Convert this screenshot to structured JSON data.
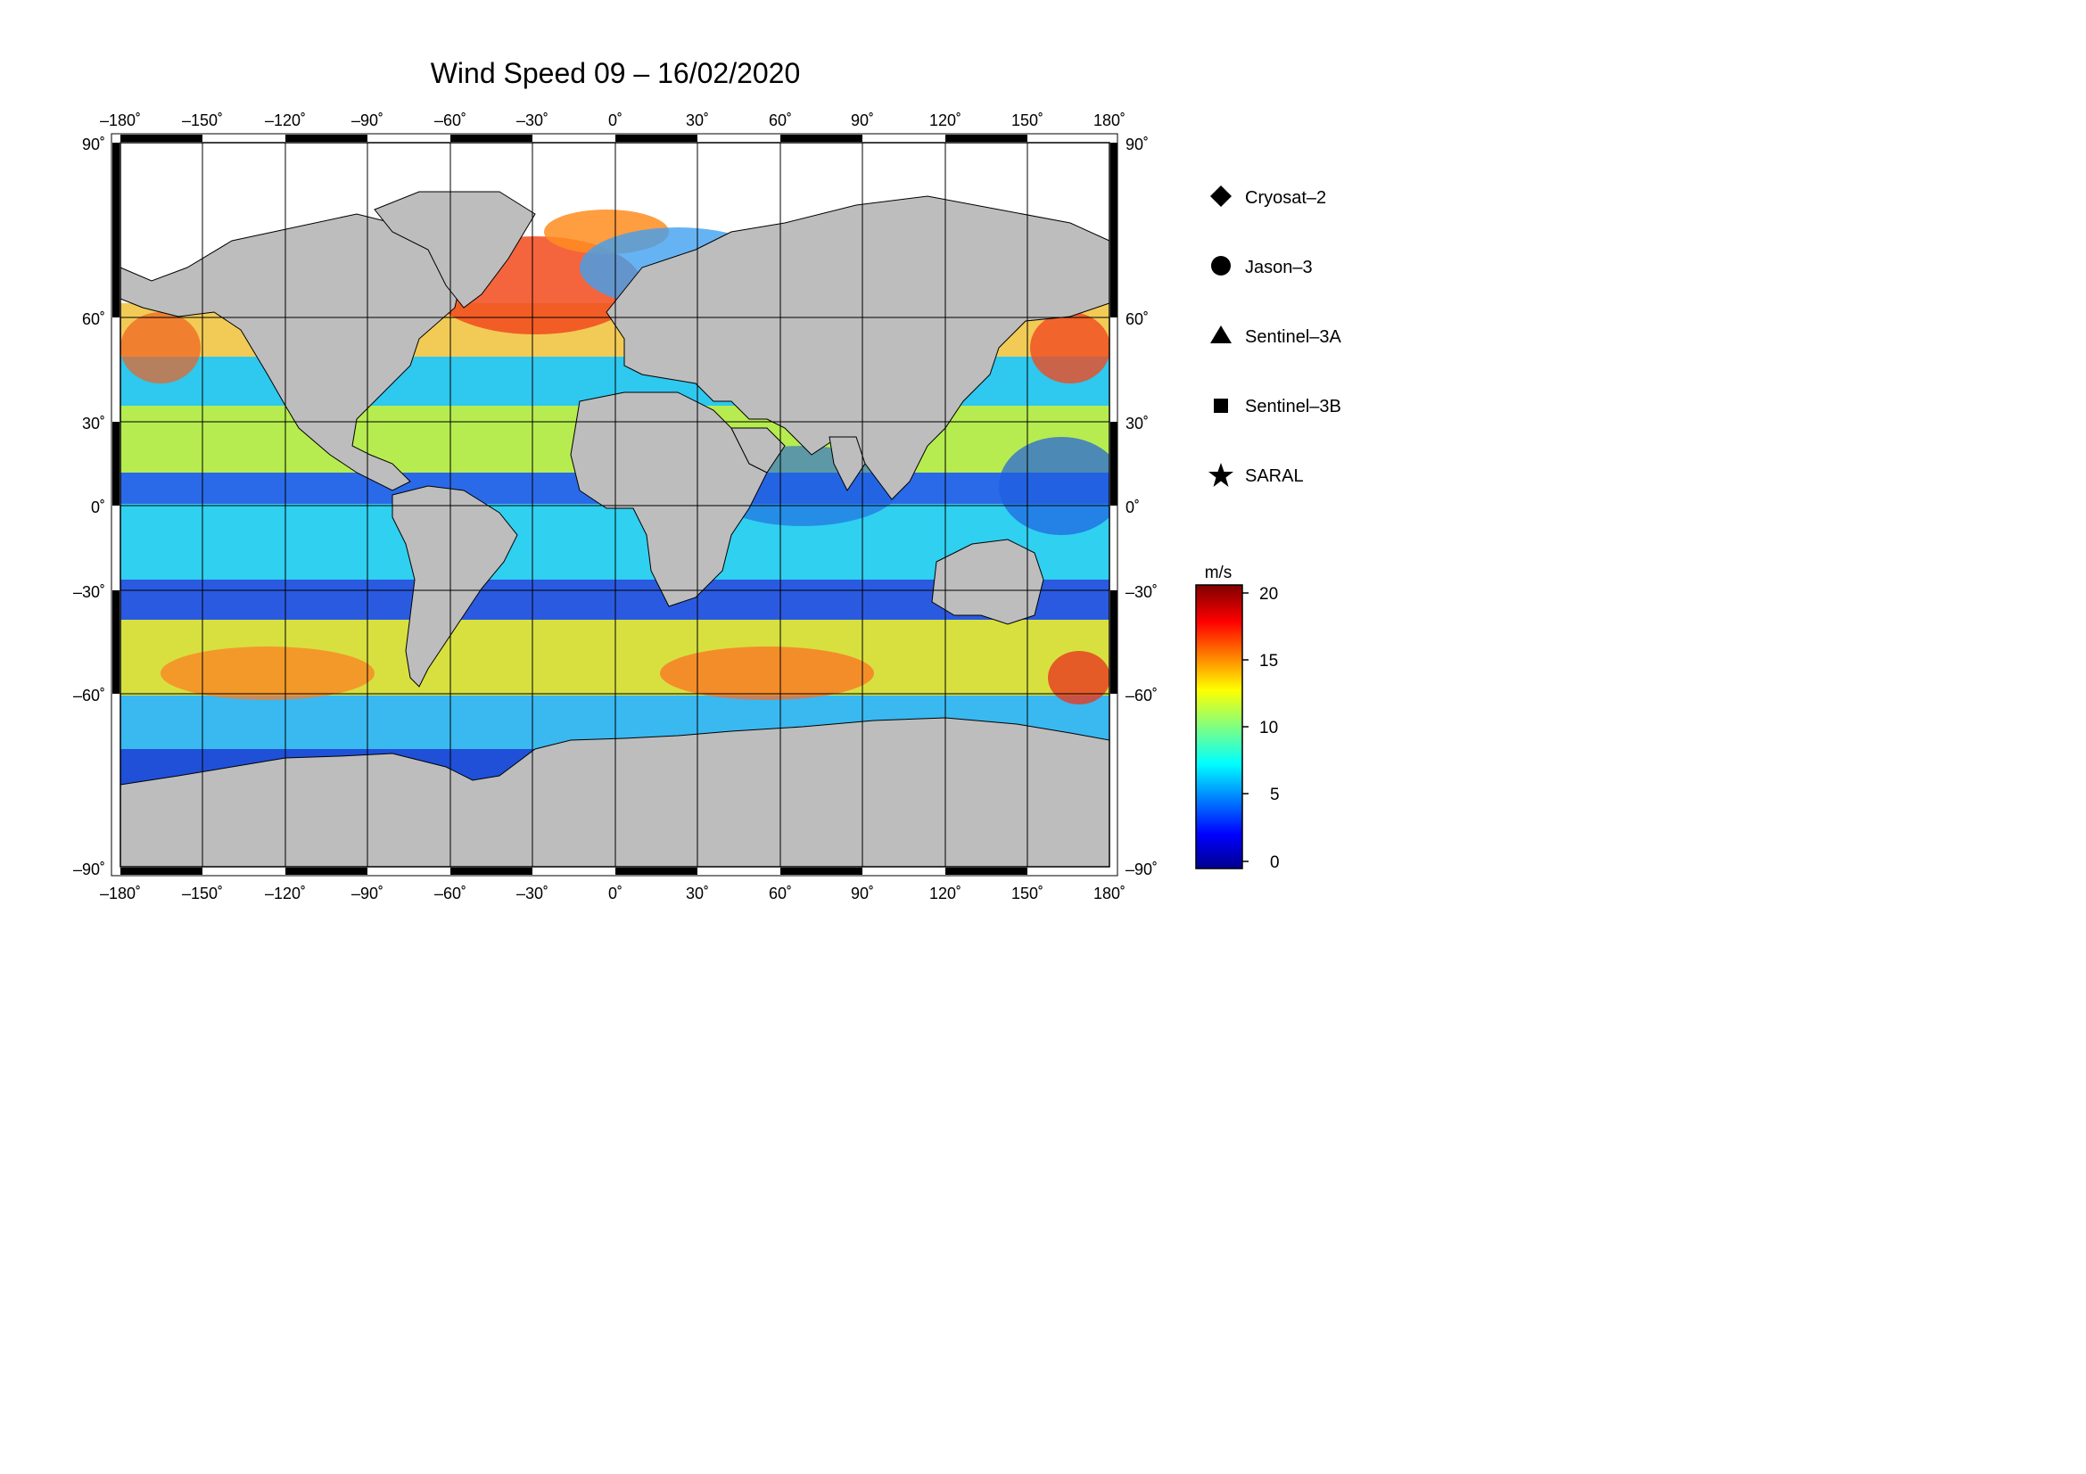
{
  "title": "Wind Speed 09 – 16/02/2020",
  "lon_ticks": [
    "–180˚",
    "–150˚",
    "–120˚",
    "–90˚",
    "–60˚",
    "–30˚",
    "0˚",
    "30˚",
    "60˚",
    "90˚",
    "120˚",
    "150˚",
    "180˚"
  ],
  "lat_ticks_left": [
    "90˚",
    "60˚",
    "30˚",
    "0˚",
    "–30˚",
    "–60˚",
    "–90˚"
  ],
  "lat_ticks_right": [
    "90˚",
    "60˚",
    "30˚",
    "0˚",
    "–30˚",
    "–60˚",
    "–90˚"
  ],
  "legend": [
    {
      "symbol": "diamond",
      "label": "Cryosat–2"
    },
    {
      "symbol": "circle",
      "label": "Jason–3"
    },
    {
      "symbol": "triangle",
      "label": "Sentinel–3A"
    },
    {
      "symbol": "square",
      "label": "Sentinel–3B"
    },
    {
      "symbol": "star",
      "label": "SARAL"
    }
  ],
  "colorbar": {
    "unit": "m/s",
    "ticks": [
      "20",
      "15",
      "10",
      "5",
      "0"
    ],
    "colors": [
      "#00008f",
      "#0000ff",
      "#0080ff",
      "#00ffff",
      "#80ff80",
      "#ffff00",
      "#ff8000",
      "#ff0000",
      "#800000"
    ]
  },
  "colors": {
    "land": "#bdbdbd",
    "ice": "#ffffff",
    "frame": "#000000"
  }
}
